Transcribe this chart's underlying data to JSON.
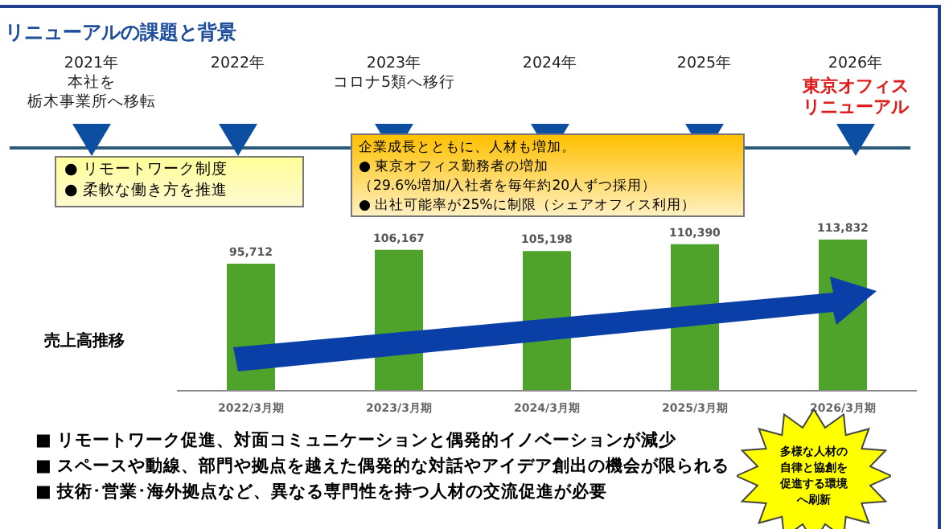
{
  "chart_data": {
    "type": "bar",
    "title": "リニューアルの課題と背景",
    "ylabel": "売上高推移",
    "categories": [
      "2022/3月期",
      "2023/3月期",
      "2024/3月期",
      "2025/3月期",
      "2026/3月期"
    ],
    "values": [
      95712,
      106167,
      105198,
      110390,
      113832
    ],
    "color": "#4fa32b",
    "value_labels": [
      "95,712",
      "106,167",
      "105,198",
      "110,390",
      "113,832"
    ],
    "annotations": [
      "2021年",
      "本社を",
      "栃木事業所へ移転",
      "2022年",
      "2023年",
      "コロナ5類へ移行",
      "2024年",
      "2025年",
      "2026年",
      "東京オフィスリニューアル",
      "●  リモートワーク制度",
      "●  柔軟な働き方を推進",
      "企業成長とともに、人材も増加。",
      "●  東京オフィス勤務者の増加",
      "（29.6%増加/入社者を毎年約20人ずつ採用）",
      "●  出社可能率が25%に制限（シェアオフィス利用）",
      "■  リモートワーク促進、対面コミュニケーションと偶発的イノベーションが減少",
      "■  スペースや動線、部門や拠点を越えた偶発的な対話やアイデア創出の機会が限られる",
      "■  技術･営業･海外拠点など、異なる専門性を持つ人材の交流促進が必要",
      "多様な人材の自律と協創を促進する環境へ刷新"
    ]
  }
}
